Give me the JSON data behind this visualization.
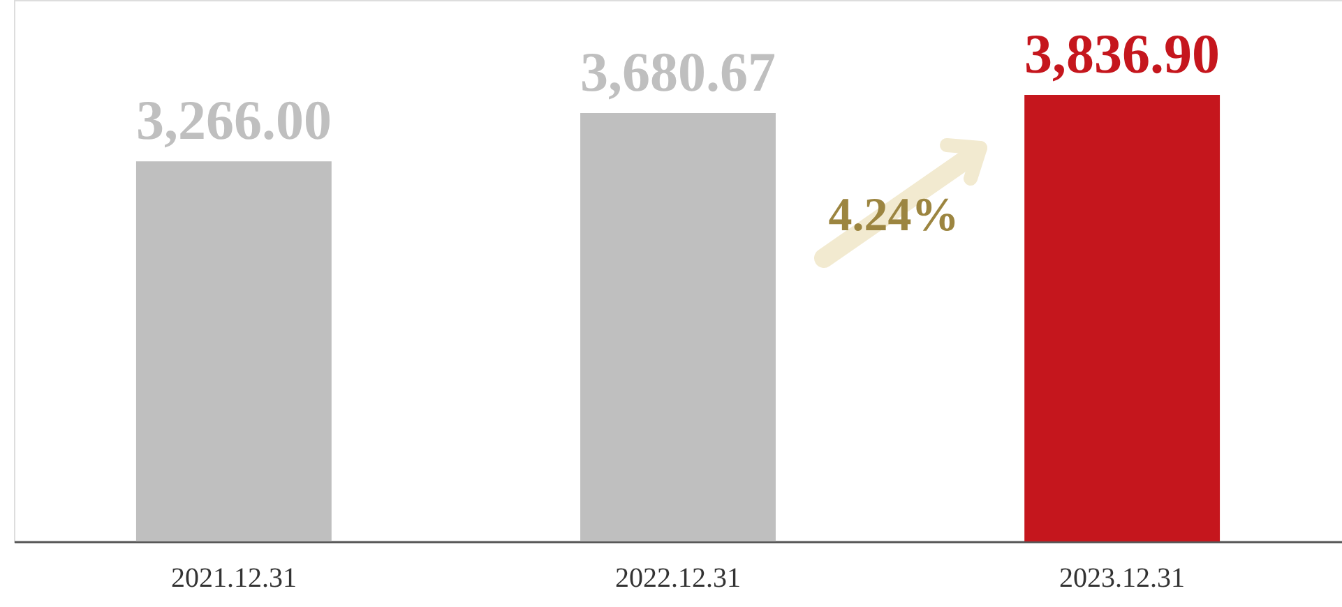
{
  "chart_data": {
    "type": "bar",
    "categories": [
      "2021.12.31",
      "2022.12.31",
      "2023.12.31"
    ],
    "values": [
      3266.0,
      3680.67,
      3836.9
    ],
    "colors": [
      "#bfbfbf",
      "#bfbfbf",
      "#c5161d"
    ],
    "value_labels": [
      "3,266.00",
      "3,680.67",
      "3,836.90"
    ],
    "grid": false,
    "annotations": [
      "4.24%"
    ]
  }
}
